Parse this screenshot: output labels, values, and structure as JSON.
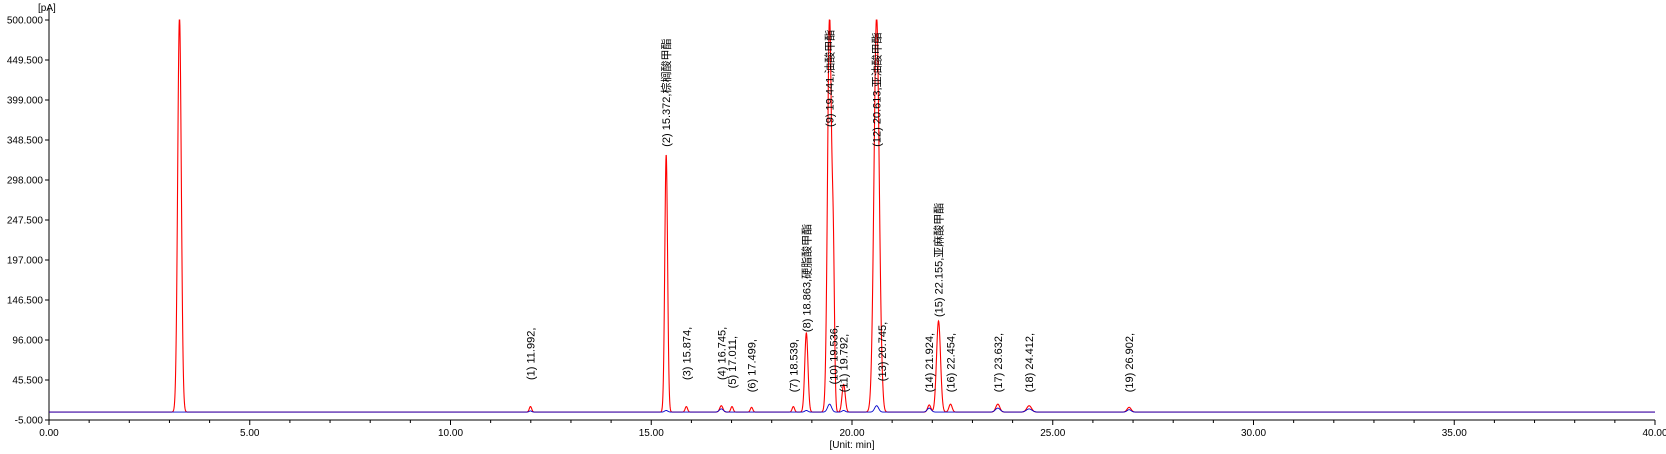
{
  "chart_data": {
    "type": "line",
    "y_unit_label": "[pA]",
    "x_unit_label": "[Unit: min]",
    "xlim": [
      0,
      40
    ],
    "ylim": [
      -5,
      500
    ],
    "x_ticks": [
      0,
      5,
      10,
      15,
      20,
      25,
      30,
      35,
      40
    ],
    "x_tick_labels": [
      "0.00",
      "5.00",
      "10.00",
      "15.00",
      "20.00",
      "25.00",
      "30.00",
      "35.00",
      "40.00"
    ],
    "y_ticks": [
      -5,
      45.5,
      96,
      146.5,
      197,
      247.5,
      298,
      348.5,
      399,
      449.5,
      500
    ],
    "y_tick_labels": [
      "-5.000",
      "45.500",
      "96.000",
      "146.500",
      "197.000",
      "247.500",
      "298.000",
      "348.500",
      "399.000",
      "449.500",
      "500.000"
    ],
    "grid": false,
    "baseline": 5,
    "series": [
      {
        "color": "#ff0000",
        "peaks": [
          {
            "rt": 3.25,
            "height": 500,
            "width": 0.045
          },
          {
            "rt": 11.992,
            "height": 7,
            "width": 0.03
          },
          {
            "rt": 15.372,
            "height": 325,
            "width": 0.035
          },
          {
            "rt": 15.874,
            "height": 7,
            "width": 0.03
          },
          {
            "rt": 16.745,
            "height": 8,
            "width": 0.04
          },
          {
            "rt": 17.011,
            "height": 7,
            "width": 0.03
          },
          {
            "rt": 17.499,
            "height": 6,
            "width": 0.03
          },
          {
            "rt": 18.539,
            "height": 7,
            "width": 0.03
          },
          {
            "rt": 18.863,
            "height": 100,
            "width": 0.04
          },
          {
            "rt": 19.441,
            "height": 500,
            "width": 0.05
          },
          {
            "rt": 19.536,
            "height": 160,
            "width": 0.03
          },
          {
            "rt": 19.792,
            "height": 35,
            "width": 0.04
          },
          {
            "rt": 20.613,
            "height": 500,
            "width": 0.065
          },
          {
            "rt": 20.745,
            "height": 8,
            "width": 0.03
          },
          {
            "rt": 21.924,
            "height": 9,
            "width": 0.04
          },
          {
            "rt": 22.155,
            "height": 115,
            "width": 0.05
          },
          {
            "rt": 22.454,
            "height": 10,
            "width": 0.04
          },
          {
            "rt": 23.632,
            "height": 10,
            "width": 0.05
          },
          {
            "rt": 24.412,
            "height": 8,
            "width": 0.06
          },
          {
            "rt": 26.902,
            "height": 6,
            "width": 0.05
          }
        ]
      },
      {
        "color": "#0000cc",
        "peaks": [
          {
            "rt": 11.992,
            "height": 1.5,
            "width": 0.03
          },
          {
            "rt": 15.372,
            "height": 2,
            "width": 0.04
          },
          {
            "rt": 16.745,
            "height": 4,
            "width": 0.05
          },
          {
            "rt": 18.863,
            "height": 2,
            "width": 0.04
          },
          {
            "rt": 19.441,
            "height": 10,
            "width": 0.05
          },
          {
            "rt": 19.792,
            "height": 2,
            "width": 0.04
          },
          {
            "rt": 20.613,
            "height": 8,
            "width": 0.05
          },
          {
            "rt": 21.924,
            "height": 5,
            "width": 0.05
          },
          {
            "rt": 23.632,
            "height": 5,
            "width": 0.06
          },
          {
            "rt": 24.412,
            "height": 4,
            "width": 0.07
          },
          {
            "rt": 26.902,
            "height": 3,
            "width": 0.05
          }
        ]
      }
    ],
    "annotations": [
      {
        "rt": 11.992,
        "label_y": 45.5,
        "text": "(1) 11.992,"
      },
      {
        "rt": 15.372,
        "label_y": 340,
        "text": "(2) 15.372,棕榈酸甲酯"
      },
      {
        "rt": 15.874,
        "label_y": 45.5,
        "text": "(3) 15.874,"
      },
      {
        "rt": 16.745,
        "label_y": 45.5,
        "text": "(4) 16.745,"
      },
      {
        "rt": 17.011,
        "label_y": 35,
        "text": "(5) 17.011,"
      },
      {
        "rt": 17.499,
        "label_y": 30,
        "text": "(6) 17.499,"
      },
      {
        "rt": 18.539,
        "label_y": 30,
        "text": "(7) 18.539,"
      },
      {
        "rt": 18.863,
        "label_y": 106,
        "text": "(8) 18.863,硬脂酸甲酯"
      },
      {
        "rt": 19.441,
        "label_y": 365,
        "text": "(9) 19.441,油酸甲酯"
      },
      {
        "rt": 19.536,
        "label_y": 40,
        "text": "(10) 19.536,"
      },
      {
        "rt": 19.792,
        "label_y": 30,
        "text": "(11) 19.792,"
      },
      {
        "rt": 20.613,
        "label_y": 340,
        "text": "(12) 20.613,亚油酸甲酯"
      },
      {
        "rt": 20.745,
        "label_y": 44,
        "text": "(13) 20.745,"
      },
      {
        "rt": 21.924,
        "label_y": 30,
        "text": "(14) 21.924,"
      },
      {
        "rt": 22.155,
        "label_y": 125,
        "text": "(15) 22.155,亚麻酸甲酯"
      },
      {
        "rt": 22.454,
        "label_y": 30,
        "text": "(16) 22.454,"
      },
      {
        "rt": 23.632,
        "label_y": 30,
        "text": "(17) 23.632,"
      },
      {
        "rt": 24.412,
        "label_y": 30,
        "text": "(18) 24.412,"
      },
      {
        "rt": 26.902,
        "label_y": 30,
        "text": "(19) 26.902,"
      }
    ]
  }
}
